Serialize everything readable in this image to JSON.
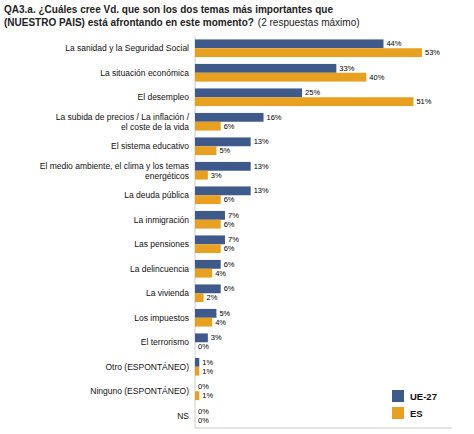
{
  "chart_data": {
    "type": "bar",
    "orientation": "horizontal",
    "title": "QA3.a. ¿Cuáles cree Vd. que son los dos temas más importantes que\n(NUESTRO PAIS) está afrontando en este momento?",
    "subtitle": "(2 respuestas máximo)",
    "categories": [
      "La sanidad y la Seguridad Social",
      "La situación económica",
      "El desempleo",
      "La subida de precios / La inflación /\nel coste de la vida",
      "El sistema educativo",
      "El medio ambiente, el clima y los temas\nenergéticos",
      "La deuda pública",
      "La inmigración",
      "Las pensiones",
      "La delincuencia",
      "La vivienda",
      "Los impuestos",
      "El terrorismo",
      "Otro (ESPONTÁNEO)",
      "Ninguno (ESPONTÁNEO)",
      "NS"
    ],
    "series": [
      {
        "name": "UE-27",
        "color": "#3d5a8a",
        "values": [
          44,
          33,
          25,
          16,
          13,
          13,
          13,
          7,
          7,
          6,
          6,
          5,
          3,
          1,
          0,
          0
        ],
        "value_labels": [
          "44%",
          "33%",
          "25%",
          "16%",
          "13%",
          "13%",
          "13%",
          "7%",
          "7%",
          "6%",
          "6%",
          "5%",
          "3%",
          "1%",
          "0%",
          "0%"
        ]
      },
      {
        "name": "ES",
        "color": "#e8a020",
        "values": [
          53,
          40,
          51,
          6,
          5,
          3,
          6,
          6,
          6,
          4,
          2,
          4,
          0,
          1,
          1,
          0
        ],
        "value_labels": [
          "53%",
          "40%",
          "51%",
          "6%",
          "5%",
          "3%",
          "6%",
          "6%",
          "6%",
          "4%",
          "2%",
          "4%",
          "0%",
          "1%",
          "1%",
          "0%"
        ]
      }
    ],
    "xlim": [
      0,
      60
    ],
    "tick_labels": false,
    "grid": false,
    "data_labels": true,
    "legend": "lower right"
  }
}
